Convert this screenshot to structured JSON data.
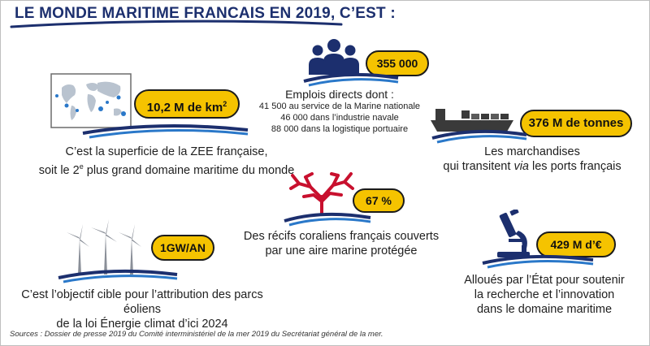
{
  "title": "LE MONDE MARITIME FRANCAIS EN 2019, C’EST :",
  "zee": {
    "badge": "10,2 M de km",
    "badge_sup": "2",
    "caption_line1": "C’est la superficie de la ZEE française,",
    "caption_line2_a": "soit le 2",
    "caption_line2_sup": "e",
    "caption_line2_b": " plus grand domaine maritime du monde"
  },
  "jobs": {
    "badge": "355 000",
    "heading": "Emplois directs dont :",
    "line1": "41 500 au service de la Marine nationale",
    "line2": "46 000 dans l’industrie navale",
    "line3": "88 000 dans la logistique portuaire"
  },
  "cargo": {
    "badge": "376 M de tonnes",
    "caption_line1": "Les marchandises",
    "caption_line2_a": "qui transitent ",
    "caption_line2_italic": "via",
    "caption_line2_b": " les ports français"
  },
  "coral": {
    "badge": "67 %",
    "caption_line1": "Des récifs coraliens français couverts",
    "caption_line2": "par une aire marine protégée"
  },
  "wind": {
    "badge": "1GW/AN",
    "caption_line1": "C’est l’objectif cible pour l’attribution des parcs éoliens",
    "caption_line2": "de la loi Énergie climat d’ici 2024"
  },
  "research": {
    "badge": "429 M d’€",
    "caption_line1": "Alloués par l’État pour soutenir",
    "caption_line2": "la recherche et l’innovation",
    "caption_line3": "dans le domaine maritime"
  },
  "source": "Sources : Dossier de presse 2019 du Comité interministériel de la mer 2019 du Secrétariat général de la mer.",
  "colors": {
    "navy": "#1c2f6e",
    "wave_blue": "#2a78c9",
    "badge_yellow": "#f5c300",
    "coral_red": "#c8102e",
    "gray_icon": "#8a8f98"
  },
  "icons": [
    "world-map-icon",
    "people-icon",
    "cargo-ship-icon",
    "coral-icon",
    "wind-turbines-icon",
    "microscope-icon"
  ]
}
